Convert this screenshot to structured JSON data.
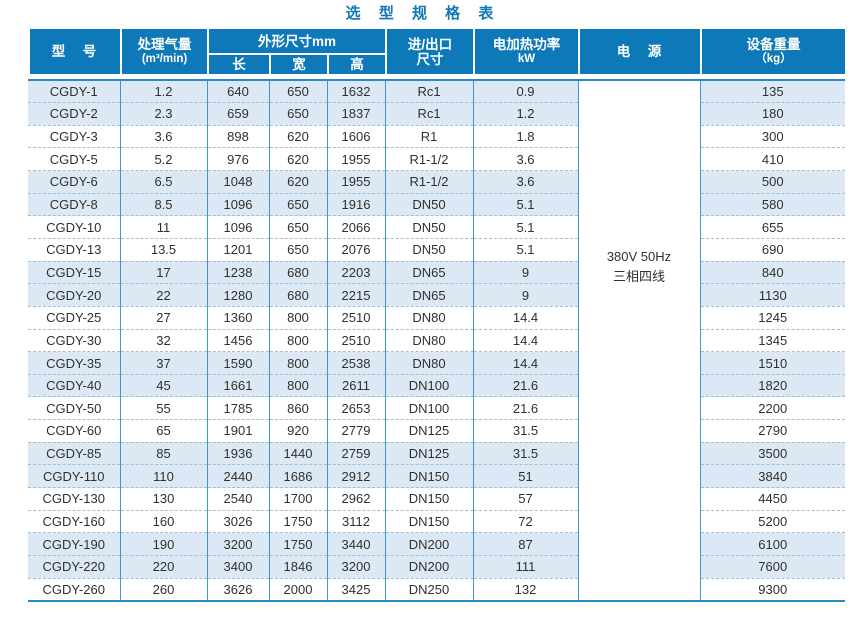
{
  "title": "选 型 规 格 表",
  "colors": {
    "header_bg": "#0e79b8",
    "header_text": "#ffffff",
    "title_text": "#1177b8",
    "row_tint": "#dce9f5",
    "row_plain": "#ffffff",
    "column_border": "#3e96cc",
    "row_dash": "#9cc0da",
    "body_edge": "#2b8ac2",
    "body_text": "#303030"
  },
  "table": {
    "headers": {
      "model": "型　号",
      "capacity_line1": "处理气量",
      "capacity_line2": "(m³/min)",
      "dimensions": "外形尺寸mm",
      "length": "长",
      "width": "宽",
      "height": "高",
      "inlet_line1": "进/出口",
      "inlet_line2": "尺寸",
      "heating_line1": "电加热功率",
      "heating_line2": "kW",
      "supply": "电　源",
      "weight_line1": "设备重量",
      "weight_line2": "（kg）"
    },
    "power_supply_line1": "380V 50Hz",
    "power_supply_line2": "三相四线",
    "column_keys": [
      "model",
      "capacity",
      "length",
      "width",
      "height",
      "inlet-outlet",
      "heating-power",
      "weight"
    ],
    "rows": [
      [
        "CGDY-1",
        "1.2",
        "640",
        "650",
        "1632",
        "Rc1",
        "0.9",
        "135"
      ],
      [
        "CGDY-2",
        "2.3",
        "659",
        "650",
        "1837",
        "Rc1",
        "1.2",
        "180"
      ],
      [
        "CGDY-3",
        "3.6",
        "898",
        "620",
        "1606",
        "R1",
        "1.8",
        "300"
      ],
      [
        "CGDY-5",
        "5.2",
        "976",
        "620",
        "1955",
        "R1-1/2",
        "3.6",
        "410"
      ],
      [
        "CGDY-6",
        "6.5",
        "1048",
        "620",
        "1955",
        "R1-1/2",
        "3.6",
        "500"
      ],
      [
        "CGDY-8",
        "8.5",
        "1096",
        "650",
        "1916",
        "DN50",
        "5.1",
        "580"
      ],
      [
        "CGDY-10",
        "11",
        "1096",
        "650",
        "2066",
        "DN50",
        "5.1",
        "655"
      ],
      [
        "CGDY-13",
        "13.5",
        "1201",
        "650",
        "2076",
        "DN50",
        "5.1",
        "690"
      ],
      [
        "CGDY-15",
        "17",
        "1238",
        "680",
        "2203",
        "DN65",
        "9",
        "840"
      ],
      [
        "CGDY-20",
        "22",
        "1280",
        "680",
        "2215",
        "DN65",
        "9",
        "1130"
      ],
      [
        "CGDY-25",
        "27",
        "1360",
        "800",
        "2510",
        "DN80",
        "14.4",
        "1245"
      ],
      [
        "CGDY-30",
        "32",
        "1456",
        "800",
        "2510",
        "DN80",
        "14.4",
        "1345"
      ],
      [
        "CGDY-35",
        "37",
        "1590",
        "800",
        "2538",
        "DN80",
        "14.4",
        "1510"
      ],
      [
        "CGDY-40",
        "45",
        "1661",
        "800",
        "2611",
        "DN100",
        "21.6",
        "1820"
      ],
      [
        "CGDY-50",
        "55",
        "1785",
        "860",
        "2653",
        "DN100",
        "21.6",
        "2200"
      ],
      [
        "CGDY-60",
        "65",
        "1901",
        "920",
        "2779",
        "DN125",
        "31.5",
        "2790"
      ],
      [
        "CGDY-85",
        "85",
        "1936",
        "1440",
        "2759",
        "DN125",
        "31.5",
        "3500"
      ],
      [
        "CGDY-110",
        "110",
        "2440",
        "1686",
        "2912",
        "DN150",
        "51",
        "3840"
      ],
      [
        "CGDY-130",
        "130",
        "2540",
        "1700",
        "2962",
        "DN150",
        "57",
        "4450"
      ],
      [
        "CGDY-160",
        "160",
        "3026",
        "1750",
        "3112",
        "DN150",
        "72",
        "5200"
      ],
      [
        "CGDY-190",
        "190",
        "3200",
        "1750",
        "3440",
        "DN200",
        "87",
        "6100"
      ],
      [
        "CGDY-220",
        "220",
        "3400",
        "1846",
        "3200",
        "DN200",
        "111",
        "7600"
      ],
      [
        "CGDY-260",
        "260",
        "3626",
        "2000",
        "3425",
        "DN250",
        "132",
        "9300"
      ]
    ]
  }
}
